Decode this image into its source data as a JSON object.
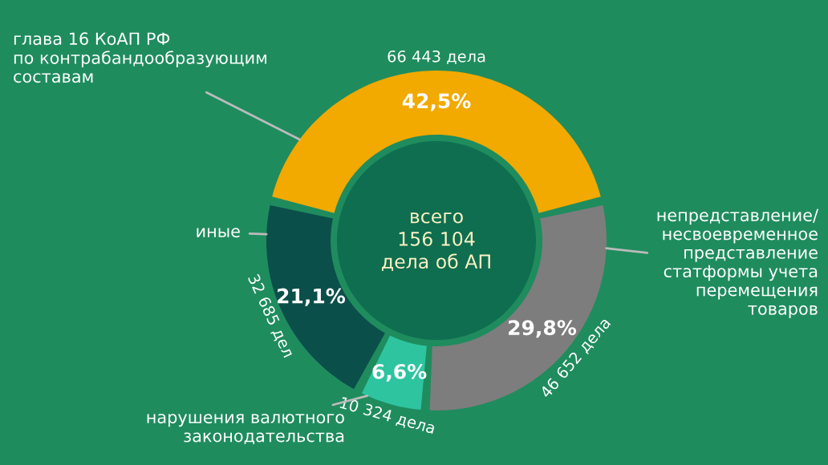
{
  "chart_data": {
    "type": "donut",
    "categories": [
      "непредставление/\nнесвоевременное\nпредставление\nстатформы учета\nперемещения\nтоваров",
      "нарушения валютного\nзаконодательства",
      "иные",
      "глава 16 КоАП РФ\nпо контрабандообразующим\nсоставам"
    ],
    "values": [
      29.8,
      6.6,
      21.1,
      42.5
    ],
    "value_labels": [
      "29,8%",
      "6,6%",
      "21,1%",
      "42,5%"
    ],
    "colors": [
      "#7d7d7d",
      "#2ec4a0",
      "#0b4f4a",
      "#f2a900"
    ],
    "annotations": [
      {
        "text": "46 652 дела",
        "x": "непредставление/\nнесвоевременное\nпредставление\nстатформы учета\nперемещения\nтоваров"
      },
      {
        "text": "10 324 дела",
        "x": "нарушения валютного\nзаконодательства"
      },
      {
        "text": "32 685 дел",
        "x": "иные"
      },
      {
        "text": "66 443 дела",
        "x": "глава 16 КоАП РФ\nпо контрабандообразующим\nсоставам"
      },
      "всего\n156 104\nдела об АП"
    ]
  }
}
